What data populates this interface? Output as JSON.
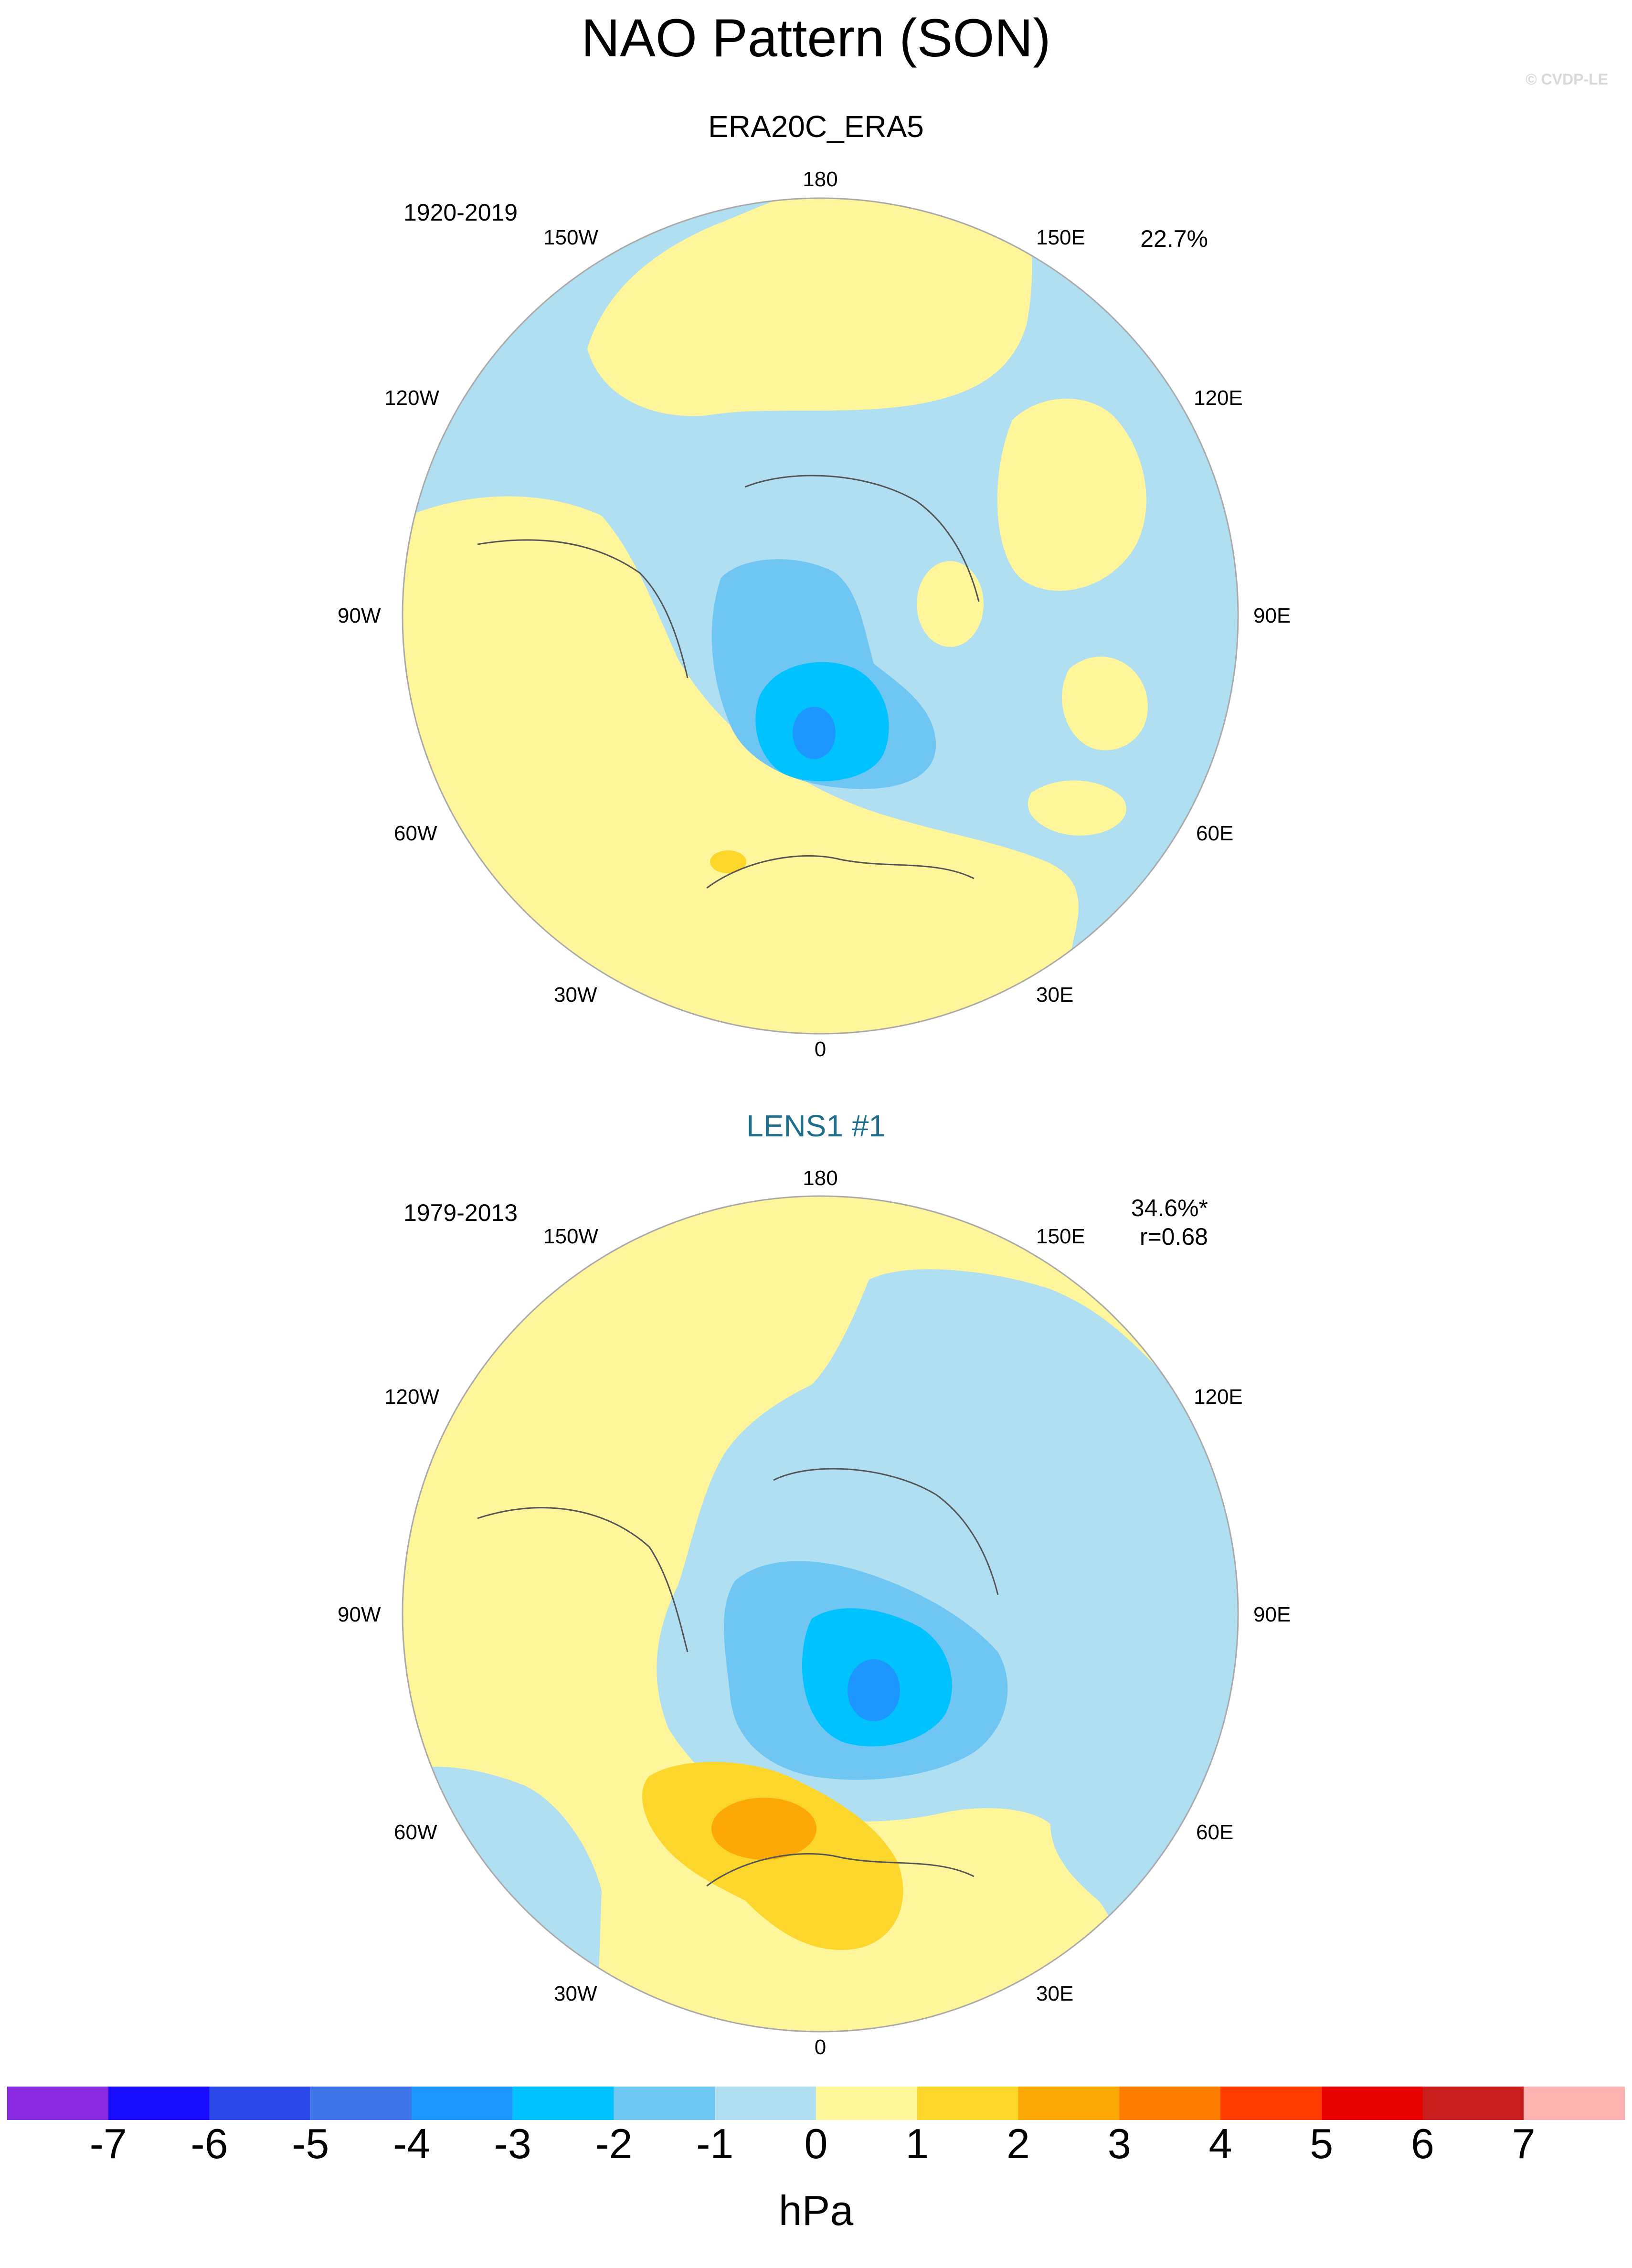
{
  "title": "NAO Pattern (SON)",
  "copyright": "© CVDP-LE",
  "panels": [
    {
      "title": "ERA20C_ERA5",
      "period": "1920-2019",
      "stat1": "22.7%",
      "stat2": "",
      "lon_labels": {
        "l180": "180",
        "l150w": "150W",
        "l150e": "150E",
        "l120w": "120W",
        "l120e": "120E",
        "l90w": "90W",
        "l90e": "90E",
        "l60w": "60W",
        "l60e": "60E",
        "l30w": "30W",
        "l30e": "30E",
        "l0": "0"
      }
    },
    {
      "title": "LENS1 #1",
      "period": "1979-2013",
      "stat1": "34.6%*",
      "stat2": "r=0.68",
      "lon_labels": {
        "l180": "180",
        "l150w": "150W",
        "l150e": "150E",
        "l120w": "120W",
        "l120e": "120E",
        "l90w": "90W",
        "l90e": "90E",
        "l60w": "60W",
        "l60e": "60E",
        "l30w": "30W",
        "l30e": "30E",
        "l0": "0"
      }
    }
  ],
  "colorbar": {
    "units": "hPa",
    "tick_labels": [
      "-7",
      "-6",
      "-5",
      "-4",
      "-3",
      "-2",
      "-1",
      "0",
      "1",
      "2",
      "3",
      "4",
      "5",
      "6",
      "7"
    ],
    "colors": [
      "#8a2be2",
      "#1a0dff",
      "#2a49e8",
      "#3d74e8",
      "#1e96ff",
      "#00c2ff",
      "#6fc6f3",
      "#b0dff2",
      "#fff59a",
      "#fcd62b",
      "#fca806",
      "#fc7c00",
      "#ff3b00",
      "#e80000",
      "#c81e1e",
      "#ffb3b3"
    ]
  },
  "colors": {
    "neg_0_1": "#b0dff2",
    "neg_1_2": "#6fc6f3",
    "neg_2_3": "#00c2ff",
    "neg_3_4": "#1e96ff",
    "pos_0_1": "#fff59a",
    "pos_1_2": "#fcd62b",
    "pos_2_3": "#fca806",
    "title_blue": "#1f6e8c"
  }
}
